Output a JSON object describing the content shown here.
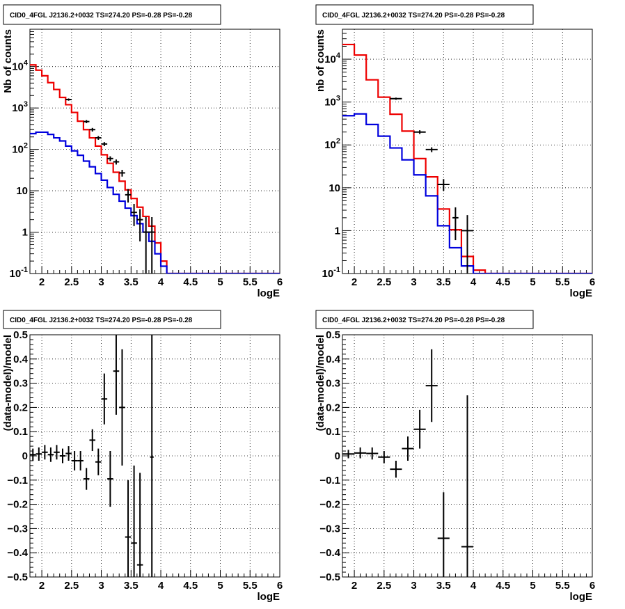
{
  "chart_data": [
    {
      "type": "line",
      "title": "CID0_4FGL J2136.2+0032 TS=274.20 PS=-0.28 PS=-0.28",
      "xlabel": "logE",
      "ylabel": "Nb of counts",
      "yscale": "log",
      "xlim": [
        1.8,
        6
      ],
      "ylim": [
        0.1,
        80000
      ],
      "xticks": [
        "2",
        "2.5",
        "3",
        "3.5",
        "4",
        "4.5",
        "5",
        "5.5",
        "6"
      ],
      "yticks": [
        "10^-1",
        "1",
        "10",
        "10^2",
        "10^3",
        "10^4"
      ],
      "grid": true,
      "bin_edges": [
        1.8,
        1.9,
        2.0,
        2.1,
        2.2,
        2.3,
        2.4,
        2.5,
        2.6,
        2.7,
        2.8,
        2.9,
        3.0,
        3.1,
        3.2,
        3.3,
        3.4,
        3.5,
        3.6,
        3.7,
        3.8,
        3.9,
        4.0,
        4.1,
        4.2,
        4.3,
        4.4,
        4.5,
        4.6,
        4.7,
        4.8,
        4.9,
        5.0,
        5.1,
        5.2,
        5.3,
        5.4,
        5.5,
        5.6,
        5.7,
        5.8,
        5.9,
        6.0
      ],
      "series": [
        {
          "color": "#ee0000",
          "values": [
            11000,
            8200,
            6000,
            4100,
            2800,
            1800,
            1200,
            780,
            480,
            300,
            190,
            120,
            74,
            46,
            28,
            17,
            10.5,
            6.5,
            4.0,
            2.4,
            1.4,
            0.55,
            0.2,
            0.1,
            0.1,
            0.1,
            0.1,
            0.1,
            0.1,
            0.1,
            0.1,
            0.1,
            0.1,
            0.1,
            0.1,
            0.1,
            0.1,
            0.1,
            0.1,
            0.1,
            0.1,
            0.1
          ]
        },
        {
          "color": "#0000dd",
          "values": [
            240,
            260,
            260,
            230,
            190,
            160,
            120,
            92,
            72,
            52,
            38,
            26,
            18,
            12,
            8.2,
            5.6,
            3.8,
            2.5,
            1.6,
            1.0,
            0.6,
            0.3,
            0.15,
            0.1,
            0.1,
            0.1,
            0.1,
            0.1,
            0.1,
            0.1,
            0.1,
            0.1,
            0.1,
            0.1,
            0.1,
            0.1,
            0.1,
            0.1,
            0.1,
            0.1,
            0.1,
            0.1
          ]
        }
      ],
      "points": [
        {
          "x": 2.45,
          "y": 1600,
          "xerr": 0.05,
          "lo": 1500,
          "hi": 1700
        },
        {
          "x": 2.75,
          "y": 470,
          "xerr": 0.05,
          "lo": 430,
          "hi": 510
        },
        {
          "x": 2.85,
          "y": 300,
          "xerr": 0.05,
          "lo": 270,
          "hi": 330
        },
        {
          "x": 2.95,
          "y": 190,
          "xerr": 0.05,
          "lo": 170,
          "hi": 210
        },
        {
          "x": 3.05,
          "y": 135,
          "xerr": 0.05,
          "lo": 120,
          "hi": 150
        },
        {
          "x": 3.15,
          "y": 60,
          "xerr": 0.05,
          "lo": 52,
          "hi": 68
        },
        {
          "x": 3.25,
          "y": 50,
          "xerr": 0.05,
          "lo": 43,
          "hi": 57
        },
        {
          "x": 3.35,
          "y": 27,
          "xerr": 0.05,
          "lo": 22,
          "hi": 32
        },
        {
          "x": 3.45,
          "y": 8,
          "xerr": 0.05,
          "lo": 5.2,
          "hi": 11
        },
        {
          "x": 3.55,
          "y": 3,
          "xerr": 0.05,
          "lo": 1.4,
          "hi": 4.8
        },
        {
          "x": 3.65,
          "y": 2,
          "xerr": 0.05,
          "lo": 0.6,
          "hi": 3.6
        },
        {
          "x": 3.75,
          "y": 1,
          "xerr": 0.05,
          "lo": 0.1,
          "hi": 2.3
        },
        {
          "x": 3.85,
          "y": 1,
          "xerr": 0.05,
          "lo": 0.1,
          "hi": 2.3
        }
      ]
    },
    {
      "type": "line",
      "title": "CID0_4FGL J2136.2+0032 TS=274.20 PS=-0.28 PS=-0.28",
      "xlabel": "logE",
      "ylabel": "nb of counts",
      "yscale": "log",
      "xlim": [
        1.8,
        6
      ],
      "ylim": [
        0.1,
        50000
      ],
      "xticks": [
        "2",
        "2.5",
        "3",
        "3.5",
        "4",
        "4.5",
        "5",
        "5.5",
        "6"
      ],
      "yticks": [
        "10^-1",
        "1",
        "10",
        "10^2",
        "10^3",
        "10^4"
      ],
      "grid": true,
      "bin_edges": [
        1.8,
        2.0,
        2.2,
        2.4,
        2.6,
        2.8,
        3.0,
        3.2,
        3.4,
        3.6,
        3.8,
        4.0,
        4.2,
        4.4,
        4.6,
        4.8,
        5.0,
        5.2,
        5.4,
        5.6,
        5.8,
        6.0
      ],
      "series": [
        {
          "color": "#ee0000",
          "values": [
            22000,
            12500,
            3300,
            1300,
            520,
            210,
            48,
            18,
            3.2,
            1.05,
            0.25,
            0.12,
            0.1,
            0.1,
            0.1,
            0.1,
            0.1,
            0.1,
            0.1,
            0.1,
            0.1
          ]
        },
        {
          "color": "#0000dd",
          "values": [
            480,
            530,
            300,
            160,
            85,
            45,
            20,
            6.5,
            1.3,
            0.4,
            0.15,
            0.1,
            0.1,
            0.1,
            0.1,
            0.1,
            0.1,
            0.1,
            0.1,
            0.1,
            0.1
          ]
        }
      ],
      "points": [
        {
          "x": 2.7,
          "y": 1200,
          "xerr": 0.1,
          "lo": 1130,
          "hi": 1270
        },
        {
          "x": 3.1,
          "y": 200,
          "xerr": 0.1,
          "lo": 180,
          "hi": 220
        },
        {
          "x": 3.3,
          "y": 78,
          "xerr": 0.1,
          "lo": 68,
          "hi": 88
        },
        {
          "x": 3.5,
          "y": 12,
          "xerr": 0.1,
          "lo": 8.5,
          "hi": 16
        },
        {
          "x": 3.7,
          "y": 2,
          "xerr": 0.05,
          "lo": 0.6,
          "hi": 3.5
        },
        {
          "x": 3.9,
          "y": 1,
          "xerr": 0.1,
          "lo": 0.1,
          "hi": 2.3
        }
      ]
    },
    {
      "type": "scatter",
      "title": "CID0_4FGL J2136.2+0032 TS=274.20 PS=-0.28 PS=-0.28",
      "xlabel": "logE",
      "ylabel": "(data-model)/model",
      "yscale": "linear",
      "xlim": [
        1.8,
        6
      ],
      "ylim": [
        -0.5,
        0.5
      ],
      "xticks": [
        "2",
        "2.5",
        "3",
        "3.5",
        "4",
        "4.5",
        "5",
        "5.5",
        "6"
      ],
      "yticks": [
        "−0.5",
        "−0.4",
        "−0.3",
        "−0.2",
        "−0.1",
        "0",
        "0.1",
        "0.2",
        "0.3",
        "0.4",
        "0.5"
      ],
      "grid": true,
      "points": [
        {
          "x": 1.85,
          "y": 0.005,
          "xerr": 0.05,
          "lo": -0.02,
          "hi": 0.03
        },
        {
          "x": 1.95,
          "y": 0.008,
          "xerr": 0.05,
          "lo": -0.02,
          "hi": 0.035
        },
        {
          "x": 2.05,
          "y": 0.015,
          "xerr": 0.05,
          "lo": -0.015,
          "hi": 0.045
        },
        {
          "x": 2.15,
          "y": 0.005,
          "xerr": 0.05,
          "lo": -0.025,
          "hi": 0.035
        },
        {
          "x": 2.25,
          "y": 0.015,
          "xerr": 0.05,
          "lo": -0.015,
          "hi": 0.045
        },
        {
          "x": 2.35,
          "y": 0.0,
          "xerr": 0.05,
          "lo": -0.03,
          "hi": 0.03
        },
        {
          "x": 2.45,
          "y": 0.01,
          "xerr": 0.05,
          "lo": -0.02,
          "hi": 0.04
        },
        {
          "x": 2.55,
          "y": -0.02,
          "xerr": 0.05,
          "lo": -0.06,
          "hi": 0.02
        },
        {
          "x": 2.65,
          "y": -0.02,
          "xerr": 0.05,
          "lo": -0.06,
          "hi": 0.02
        },
        {
          "x": 2.75,
          "y": -0.095,
          "xerr": 0.05,
          "lo": -0.14,
          "hi": -0.05
        },
        {
          "x": 2.85,
          "y": 0.065,
          "xerr": 0.05,
          "lo": 0.02,
          "hi": 0.11
        },
        {
          "x": 2.95,
          "y": -0.025,
          "xerr": 0.05,
          "lo": -0.08,
          "hi": 0.03
        },
        {
          "x": 3.05,
          "y": 0.235,
          "xerr": 0.05,
          "lo": 0.13,
          "hi": 0.34
        },
        {
          "x": 3.15,
          "y": -0.095,
          "xerr": 0.05,
          "lo": -0.21,
          "hi": 0.02
        },
        {
          "x": 3.25,
          "y": 0.35,
          "xerr": 0.05,
          "lo": 0.17,
          "hi": 0.5
        },
        {
          "x": 3.35,
          "y": 0.2,
          "xerr": 0.05,
          "lo": -0.04,
          "hi": 0.44
        },
        {
          "x": 3.45,
          "y": -0.335,
          "xerr": 0.05,
          "lo": -0.5,
          "hi": -0.1
        },
        {
          "x": 3.55,
          "y": -0.36,
          "xerr": 0.05,
          "lo": -0.5,
          "hi": -0.04
        },
        {
          "x": 3.65,
          "y": -0.45,
          "xerr": 0.05,
          "lo": -0.5,
          "hi": -0.07
        },
        {
          "x": 3.85,
          "y": -0.005,
          "xerr": 0.03,
          "lo": -0.5,
          "hi": 0.5
        }
      ]
    },
    {
      "type": "scatter",
      "title": "CID0_4FGL J2136.2+0032 TS=274.20 PS=-0.28 PS=-0.28",
      "xlabel": "logE",
      "ylabel": "(data-model)/model",
      "yscale": "linear",
      "xlim": [
        1.8,
        6
      ],
      "ylim": [
        -0.5,
        0.5
      ],
      "xticks": [
        "2",
        "2.5",
        "3",
        "3.5",
        "4",
        "4.5",
        "5",
        "5.5",
        "6"
      ],
      "yticks": [
        "−0.5",
        "−0.4",
        "−0.3",
        "−0.2",
        "−0.1",
        "0",
        "0.1",
        "0.2",
        "0.3",
        "0.4",
        "0.5"
      ],
      "grid": true,
      "points": [
        {
          "x": 1.9,
          "y": 0.008,
          "xerr": 0.1,
          "lo": -0.01,
          "hi": 0.025
        },
        {
          "x": 2.1,
          "y": 0.012,
          "xerr": 0.1,
          "lo": -0.01,
          "hi": 0.035
        },
        {
          "x": 2.3,
          "y": 0.01,
          "xerr": 0.1,
          "lo": -0.015,
          "hi": 0.035
        },
        {
          "x": 2.5,
          "y": -0.005,
          "xerr": 0.1,
          "lo": -0.03,
          "hi": 0.02
        },
        {
          "x": 2.7,
          "y": -0.055,
          "xerr": 0.1,
          "lo": -0.09,
          "hi": -0.02
        },
        {
          "x": 2.9,
          "y": 0.03,
          "xerr": 0.1,
          "lo": -0.02,
          "hi": 0.08
        },
        {
          "x": 3.1,
          "y": 0.11,
          "xerr": 0.1,
          "lo": 0.03,
          "hi": 0.19
        },
        {
          "x": 3.3,
          "y": 0.29,
          "xerr": 0.1,
          "lo": 0.14,
          "hi": 0.44
        },
        {
          "x": 3.5,
          "y": -0.34,
          "xerr": 0.1,
          "lo": -0.5,
          "hi": -0.15
        },
        {
          "x": 3.9,
          "y": -0.375,
          "xerr": 0.1,
          "lo": -0.5,
          "hi": 0.25
        }
      ]
    }
  ]
}
